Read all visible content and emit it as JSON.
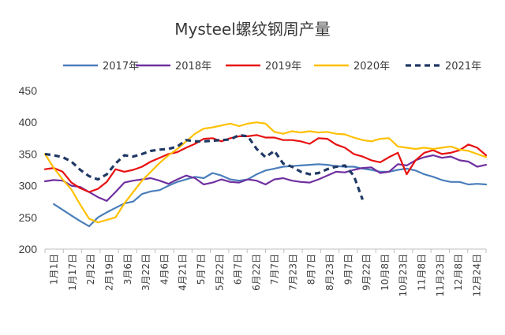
{
  "chart_data": {
    "type": "line",
    "title": "Mysteel螺纹钢周产量",
    "xlabel": "",
    "ylabel": "",
    "ylim": [
      200,
      450
    ],
    "yticks": [
      200,
      250,
      300,
      350,
      400,
      450
    ],
    "grid": false,
    "legend_position": "top",
    "categories": [
      "1月1日",
      "1月17日",
      "2月2日",
      "2月19日",
      "3月6日",
      "3月22日",
      "4月6日",
      "4月21日",
      "5月7日",
      "5月22日",
      "6月7日",
      "6月22日",
      "7月7日",
      "7月23日",
      "8月7日",
      "8月23日",
      "9月7日",
      "9月22日",
      "10月8日",
      "10月23日",
      "11月8日",
      "11月23日",
      "12月8日",
      "12月24日"
    ],
    "x_span": [
      0,
      50
    ],
    "series": [
      {
        "name": "2017年",
        "color": "#4a7ebb",
        "dash": false,
        "points": [
          [
            1,
            271
          ],
          [
            2,
            262
          ],
          [
            3,
            253
          ],
          [
            4,
            244
          ],
          [
            5,
            236
          ],
          [
            6,
            250
          ],
          [
            7,
            258
          ],
          [
            8,
            265
          ],
          [
            9,
            272
          ],
          [
            10,
            275
          ],
          [
            11,
            287
          ],
          [
            12,
            291
          ],
          [
            13,
            293
          ],
          [
            14,
            300
          ],
          [
            15,
            306
          ],
          [
            16,
            310
          ],
          [
            17,
            314
          ],
          [
            18,
            312
          ],
          [
            19,
            320
          ],
          [
            20,
            316
          ],
          [
            21,
            310
          ],
          [
            22,
            308
          ],
          [
            23,
            310
          ],
          [
            24,
            318
          ],
          [
            25,
            324
          ],
          [
            26,
            327
          ],
          [
            27,
            330
          ],
          [
            28,
            331
          ],
          [
            29,
            332
          ],
          [
            30,
            333
          ],
          [
            31,
            334
          ],
          [
            32,
            333
          ],
          [
            33,
            331
          ],
          [
            34,
            330
          ],
          [
            35,
            330
          ],
          [
            36,
            327
          ],
          [
            37,
            325
          ],
          [
            38,
            322
          ],
          [
            39,
            322
          ],
          [
            40,
            325
          ],
          [
            41,
            327
          ],
          [
            42,
            324
          ],
          [
            43,
            318
          ],
          [
            44,
            314
          ],
          [
            45,
            309
          ],
          [
            46,
            306
          ],
          [
            47,
            306
          ],
          [
            48,
            302
          ],
          [
            49,
            303
          ],
          [
            50,
            302
          ]
        ]
      },
      {
        "name": "2018年",
        "color": "#7030a0",
        "dash": false,
        "points": [
          [
            0,
            307
          ],
          [
            1,
            309
          ],
          [
            2,
            308
          ],
          [
            3,
            300
          ],
          [
            4,
            298
          ],
          [
            5,
            290
          ],
          [
            6,
            282
          ],
          [
            7,
            276
          ],
          [
            8,
            290
          ],
          [
            9,
            305
          ],
          [
            10,
            308
          ],
          [
            11,
            310
          ],
          [
            12,
            312
          ],
          [
            13,
            308
          ],
          [
            14,
            303
          ],
          [
            15,
            310
          ],
          [
            16,
            316
          ],
          [
            17,
            312
          ],
          [
            18,
            302
          ],
          [
            19,
            305
          ],
          [
            20,
            310
          ],
          [
            21,
            306
          ],
          [
            22,
            305
          ],
          [
            23,
            310
          ],
          [
            24,
            308
          ],
          [
            25,
            302
          ],
          [
            26,
            310
          ],
          [
            27,
            312
          ],
          [
            28,
            308
          ],
          [
            29,
            306
          ],
          [
            30,
            305
          ],
          [
            31,
            310
          ],
          [
            32,
            316
          ],
          [
            33,
            322
          ],
          [
            34,
            321
          ],
          [
            35,
            325
          ],
          [
            36,
            328
          ],
          [
            37,
            329
          ],
          [
            38,
            320
          ],
          [
            39,
            322
          ],
          [
            40,
            334
          ],
          [
            41,
            332
          ],
          [
            42,
            340
          ],
          [
            43,
            345
          ],
          [
            44,
            348
          ],
          [
            45,
            344
          ],
          [
            46,
            346
          ],
          [
            47,
            340
          ],
          [
            48,
            338
          ],
          [
            49,
            330
          ],
          [
            50,
            333
          ]
        ]
      },
      {
        "name": "2019年",
        "color": "#e81010",
        "dash": false,
        "points": [
          [
            0,
            326
          ],
          [
            1,
            328
          ],
          [
            2,
            322
          ],
          [
            3,
            305
          ],
          [
            4,
            296
          ],
          [
            5,
            290
          ],
          [
            6,
            295
          ],
          [
            7,
            306
          ],
          [
            8,
            326
          ],
          [
            9,
            322
          ],
          [
            10,
            325
          ],
          [
            11,
            330
          ],
          [
            12,
            338
          ],
          [
            13,
            344
          ],
          [
            14,
            350
          ],
          [
            15,
            353
          ],
          [
            16,
            360
          ],
          [
            17,
            366
          ],
          [
            18,
            374
          ],
          [
            19,
            375
          ],
          [
            20,
            370
          ],
          [
            21,
            375
          ],
          [
            22,
            378
          ],
          [
            23,
            378
          ],
          [
            24,
            380
          ],
          [
            25,
            376
          ],
          [
            26,
            376
          ],
          [
            27,
            372
          ],
          [
            28,
            372
          ],
          [
            29,
            370
          ],
          [
            30,
            366
          ],
          [
            31,
            375
          ],
          [
            32,
            374
          ],
          [
            33,
            365
          ],
          [
            34,
            360
          ],
          [
            35,
            350
          ],
          [
            36,
            346
          ],
          [
            37,
            340
          ],
          [
            38,
            337
          ],
          [
            39,
            345
          ],
          [
            40,
            352
          ],
          [
            41,
            318
          ],
          [
            42,
            340
          ],
          [
            43,
            352
          ],
          [
            44,
            356
          ],
          [
            45,
            350
          ],
          [
            46,
            352
          ],
          [
            47,
            356
          ],
          [
            48,
            365
          ],
          [
            49,
            360
          ],
          [
            50,
            348
          ]
        ]
      },
      {
        "name": "2020年",
        "color": "#ffc000",
        "dash": false,
        "points": [
          [
            0,
            350
          ],
          [
            1,
            328
          ],
          [
            2,
            310
          ],
          [
            3,
            294
          ],
          [
            4,
            270
          ],
          [
            5,
            248
          ],
          [
            6,
            242
          ],
          [
            7,
            246
          ],
          [
            8,
            250
          ],
          [
            9,
            272
          ],
          [
            10,
            290
          ],
          [
            11,
            308
          ],
          [
            12,
            322
          ],
          [
            13,
            336
          ],
          [
            14,
            348
          ],
          [
            15,
            358
          ],
          [
            16,
            370
          ],
          [
            17,
            382
          ],
          [
            18,
            390
          ],
          [
            19,
            392
          ],
          [
            20,
            395
          ],
          [
            21,
            398
          ],
          [
            22,
            394
          ],
          [
            23,
            398
          ],
          [
            24,
            400
          ],
          [
            25,
            398
          ],
          [
            26,
            385
          ],
          [
            27,
            382
          ],
          [
            28,
            386
          ],
          [
            29,
            384
          ],
          [
            30,
            386
          ],
          [
            31,
            384
          ],
          [
            32,
            385
          ],
          [
            33,
            382
          ],
          [
            34,
            381
          ],
          [
            35,
            376
          ],
          [
            36,
            372
          ],
          [
            37,
            370
          ],
          [
            38,
            374
          ],
          [
            39,
            375
          ],
          [
            40,
            362
          ],
          [
            41,
            360
          ],
          [
            42,
            358
          ],
          [
            43,
            360
          ],
          [
            44,
            358
          ],
          [
            45,
            360
          ],
          [
            46,
            362
          ],
          [
            47,
            357
          ],
          [
            48,
            355
          ],
          [
            49,
            350
          ],
          [
            50,
            345
          ]
        ]
      },
      {
        "name": "2021年",
        "color": "#1f3864",
        "dash": true,
        "points": [
          [
            0,
            350
          ],
          [
            1,
            348
          ],
          [
            2,
            345
          ],
          [
            3,
            338
          ],
          [
            4,
            325
          ],
          [
            5,
            315
          ],
          [
            6,
            310
          ],
          [
            7,
            318
          ],
          [
            8,
            335
          ],
          [
            9,
            348
          ],
          [
            10,
            346
          ],
          [
            11,
            350
          ],
          [
            12,
            355
          ],
          [
            13,
            357
          ],
          [
            14,
            358
          ],
          [
            15,
            362
          ],
          [
            16,
            372
          ],
          [
            17,
            370
          ],
          [
            18,
            370
          ],
          [
            19,
            371
          ],
          [
            20,
            372
          ],
          [
            21,
            373
          ],
          [
            22,
            380
          ],
          [
            23,
            378
          ],
          [
            24,
            358
          ],
          [
            25,
            345
          ],
          [
            26,
            355
          ],
          [
            27,
            335
          ],
          [
            28,
            330
          ],
          [
            29,
            322
          ],
          [
            30,
            318
          ],
          [
            31,
            320
          ],
          [
            32,
            326
          ],
          [
            33,
            330
          ],
          [
            34,
            332
          ],
          [
            35,
            316
          ],
          [
            36,
            278
          ]
        ]
      }
    ]
  }
}
